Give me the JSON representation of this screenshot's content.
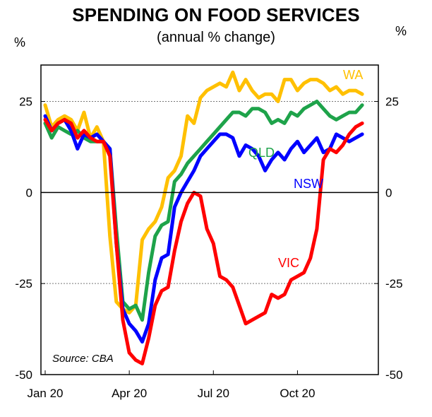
{
  "title": "SPENDING ON FOOD SERVICES",
  "subtitle": "(annual % change)",
  "unit_left": "%",
  "unit_right": "%",
  "source": "Source: CBA",
  "chart_data": {
    "type": "line",
    "title": "SPENDING ON FOOD SERVICES",
    "subtitle": "(annual % change)",
    "ylabel": "%",
    "ylim": [
      -50,
      35
    ],
    "yticks": [
      -50,
      -25,
      0,
      25
    ],
    "ytick_labels": [
      "-50",
      "-25",
      "0",
      "25"
    ],
    "xlim": [
      0,
      50
    ],
    "xticks": [
      0,
      13,
      26,
      39
    ],
    "xtick_labels": [
      "Jan 20",
      "Apr 20",
      "Jul 20",
      "Oct 20"
    ],
    "zero_line": true,
    "dashed_gridlines": [
      25,
      -25
    ],
    "x": [
      0,
      1,
      2,
      3,
      4,
      5,
      6,
      7,
      8,
      9,
      10,
      11,
      12,
      13,
      14,
      15,
      16,
      17,
      18,
      19,
      20,
      21,
      22,
      23,
      24,
      25,
      26,
      27,
      28,
      29,
      30,
      31,
      32,
      33,
      34,
      35,
      36,
      37,
      38,
      39,
      40,
      41,
      42,
      43,
      44,
      45,
      46,
      47,
      48,
      49
    ],
    "series": [
      {
        "name": "WA",
        "color": "#ffc000",
        "values": [
          24,
          18,
          20,
          21,
          20,
          17,
          22,
          15,
          18,
          14,
          -12,
          -30,
          -32,
          -33,
          -31,
          -13,
          -10,
          -8,
          -4,
          4,
          6,
          10,
          21,
          19,
          26,
          28,
          29,
          30,
          29,
          33,
          28,
          31,
          28,
          26,
          27,
          27,
          25,
          31,
          31,
          28,
          30,
          31,
          31,
          30,
          28,
          29,
          27,
          28,
          28,
          27
        ]
      },
      {
        "name": "QLD",
        "color": "#1ea34a",
        "values": [
          19,
          15,
          18,
          17,
          16,
          17,
          15,
          14,
          14,
          14,
          12,
          -10,
          -30,
          -32,
          -31,
          -35,
          -22,
          -12,
          -9,
          -8,
          3,
          5,
          8,
          10,
          12,
          14,
          16,
          18,
          20,
          22,
          22,
          21,
          23,
          23,
          22,
          19,
          20,
          19,
          22,
          21,
          23,
          24,
          25,
          23,
          21,
          20,
          21,
          22,
          22,
          24
        ]
      },
      {
        "name": "NSW",
        "color": "#0000ff",
        "values": [
          21,
          17,
          19,
          20,
          17,
          12,
          16,
          15,
          16,
          14,
          12,
          -14,
          -32,
          -36,
          -38,
          -41,
          -36,
          -24,
          -18,
          -17,
          -4,
          0,
          3,
          6,
          10,
          12,
          14,
          16,
          16,
          15,
          10,
          13,
          12,
          10,
          6,
          9,
          11,
          9,
          12,
          14,
          11,
          13,
          15,
          11,
          12,
          16,
          15,
          14,
          15,
          16
        ]
      },
      {
        "name": "VIC",
        "color": "#ff0000",
        "values": [
          20,
          17,
          19,
          20,
          19,
          15,
          17,
          15,
          14,
          14,
          10,
          -14,
          -35,
          -44,
          -46,
          -47,
          -40,
          -31,
          -27,
          -26,
          -16,
          -8,
          -3,
          0,
          -1,
          -10,
          -14,
          -23,
          -24,
          -26,
          -31,
          -36,
          -35,
          -34,
          -33,
          -28,
          -29,
          -28,
          -24,
          -23,
          -22,
          -18,
          -10,
          9,
          12,
          11,
          13,
          16,
          18,
          19
        ]
      }
    ],
    "series_labels": [
      {
        "text": "WA",
        "color": "#ffc000"
      },
      {
        "text": "QLD",
        "color": "#1ea34a"
      },
      {
        "text": "NSW",
        "color": "#0000ff"
      },
      {
        "text": "VIC",
        "color": "#ff0000"
      }
    ]
  }
}
